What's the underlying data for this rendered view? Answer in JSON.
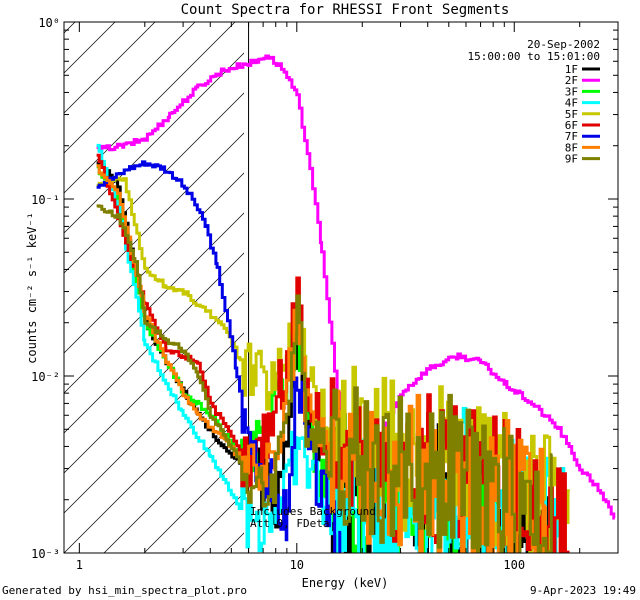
{
  "chart_data": {
    "type": "line",
    "title": "Count Spectra for RHESSI Front Segments",
    "xlabel": "Energy (keV)",
    "ylabel": "counts cm⁻² s⁻¹ keV⁻¹",
    "xscale": "log",
    "yscale": "log",
    "xlim": [
      0.85,
      300
    ],
    "ylim": [
      0.001,
      1.0
    ],
    "x_tick_labels": [
      "1",
      "10",
      "100"
    ],
    "y_tick_labels": [
      "10⁻³",
      "10⁻²",
      "10⁻¹",
      "10⁰"
    ],
    "date": "20-Sep-2002",
    "time_range": "15:00:00 to 15:01:00",
    "annotation_line1": "Includes Background",
    "annotation_line2": "Att 0, FDeta",
    "hatch_region_xmax": 6.0,
    "legend_position": "top-right",
    "series": [
      {
        "name": "1F",
        "color": "#000000",
        "points": [
          [
            1.2,
            0.165
          ],
          [
            1.5,
            0.12
          ],
          [
            2,
            0.02
          ],
          [
            2.5,
            0.012
          ],
          [
            3.5,
            0.006
          ],
          [
            4.5,
            0.004
          ],
          [
            6,
            0.003
          ],
          [
            8,
            0.002
          ],
          [
            10,
            0.015
          ],
          [
            12,
            0.003
          ],
          [
            20,
            0.002
          ],
          [
            40,
            0.002
          ],
          [
            80,
            0.0016
          ],
          [
            150,
            0.0012
          ]
        ]
      },
      {
        "name": "2F",
        "color": "#ff00ff",
        "points": [
          [
            1.2,
            0.19
          ],
          [
            1.6,
            0.2
          ],
          [
            2,
            0.22
          ],
          [
            2.6,
            0.3
          ],
          [
            3.5,
            0.43
          ],
          [
            4.5,
            0.53
          ],
          [
            5.5,
            0.57
          ],
          [
            6.5,
            0.6
          ],
          [
            7.2,
            0.65
          ],
          [
            8.5,
            0.55
          ],
          [
            10,
            0.38
          ],
          [
            11.5,
            0.15
          ],
          [
            13,
            0.05
          ],
          [
            14.5,
            0.015
          ],
          [
            16,
            0.005
          ],
          [
            18,
            0.003
          ],
          [
            20,
            0.0028
          ],
          [
            25,
            0.005
          ],
          [
            30,
            0.008
          ],
          [
            40,
            0.011
          ],
          [
            55,
            0.013
          ],
          [
            70,
            0.012
          ],
          [
            90,
            0.009
          ],
          [
            120,
            0.007
          ],
          [
            160,
            0.005
          ],
          [
            200,
            0.003
          ],
          [
            250,
            0.0022
          ],
          [
            290,
            0.0015
          ]
        ]
      },
      {
        "name": "3F",
        "color": "#00ff00",
        "points": [
          [
            1.2,
            0.15
          ],
          [
            1.5,
            0.1
          ],
          [
            2,
            0.02
          ],
          [
            3,
            0.008
          ],
          [
            4,
            0.006
          ],
          [
            6,
            0.003
          ],
          [
            9,
            0.01
          ],
          [
            10,
            0.02
          ],
          [
            12,
            0.003
          ],
          [
            20,
            0.002
          ],
          [
            50,
            0.0017
          ],
          [
            100,
            0.0014
          ]
        ]
      },
      {
        "name": "4F",
        "color": "#00ffff",
        "points": [
          [
            1.2,
            0.2
          ],
          [
            1.5,
            0.09
          ],
          [
            2,
            0.015
          ],
          [
            3,
            0.006
          ],
          [
            4,
            0.0035
          ],
          [
            5,
            0.0022
          ],
          [
            6,
            0.0014
          ],
          [
            8,
            0.0018
          ],
          [
            10,
            0.004
          ],
          [
            15,
            0.0015
          ],
          [
            30,
            0.0018
          ],
          [
            60,
            0.0025
          ],
          [
            100,
            0.0018
          ],
          [
            180,
            0.0012
          ]
        ]
      },
      {
        "name": "5F",
        "color": "#c8c800",
        "points": [
          [
            1.2,
            0.12
          ],
          [
            1.6,
            0.13
          ],
          [
            2,
            0.04
          ],
          [
            2.5,
            0.032
          ],
          [
            3,
            0.03
          ],
          [
            3.5,
            0.025
          ],
          [
            4.5,
            0.02
          ],
          [
            5.5,
            0.012
          ],
          [
            6.5,
            0.01
          ],
          [
            8,
            0.009
          ],
          [
            10,
            0.03
          ],
          [
            11,
            0.01
          ],
          [
            13,
            0.006
          ],
          [
            20,
            0.004
          ],
          [
            30,
            0.0035
          ],
          [
            50,
            0.003
          ],
          [
            80,
            0.0025
          ],
          [
            120,
            0.002
          ],
          [
            180,
            0.0012
          ]
        ]
      },
      {
        "name": "6F",
        "color": "#e00000",
        "points": [
          [
            1.2,
            0.18
          ],
          [
            1.5,
            0.08
          ],
          [
            2,
            0.025
          ],
          [
            2.5,
            0.014
          ],
          [
            3,
            0.013
          ],
          [
            3.5,
            0.012
          ],
          [
            4,
            0.007
          ],
          [
            5,
            0.0045
          ],
          [
            6,
            0.003
          ],
          [
            7,
            0.0045
          ],
          [
            9,
            0.012
          ],
          [
            10,
            0.033
          ],
          [
            11,
            0.008
          ],
          [
            14,
            0.004
          ],
          [
            20,
            0.0035
          ],
          [
            40,
            0.003
          ],
          [
            70,
            0.0025
          ],
          [
            120,
            0.0018
          ],
          [
            180,
            0.0012
          ]
        ]
      },
      {
        "name": "7F",
        "color": "#0000e6",
        "points": [
          [
            1.2,
            0.12
          ],
          [
            1.4,
            0.13
          ],
          [
            1.7,
            0.15
          ],
          [
            2,
            0.16
          ],
          [
            2.4,
            0.15
          ],
          [
            2.8,
            0.13
          ],
          [
            3.3,
            0.1
          ],
          [
            3.8,
            0.07
          ],
          [
            4.3,
            0.04
          ],
          [
            4.8,
            0.02
          ],
          [
            5.3,
            0.01
          ],
          [
            5.8,
            0.005
          ],
          [
            7,
            0.003
          ],
          [
            8,
            0.002
          ],
          [
            9,
            0.0015
          ],
          [
            10,
            0.012
          ],
          [
            11,
            0.004
          ],
          [
            13,
            0.002
          ],
          [
            16,
            0.0015
          ]
        ]
      },
      {
        "name": "8F",
        "color": "#ff7f00",
        "points": [
          [
            1.2,
            0.15
          ],
          [
            1.5,
            0.11
          ],
          [
            2,
            0.022
          ],
          [
            2.5,
            0.012
          ],
          [
            3,
            0.008
          ],
          [
            3.5,
            0.006
          ],
          [
            4.5,
            0.0045
          ],
          [
            6,
            0.003
          ],
          [
            8,
            0.003
          ],
          [
            10,
            0.022
          ],
          [
            11,
            0.006
          ],
          [
            14,
            0.004
          ],
          [
            20,
            0.003
          ],
          [
            40,
            0.0028
          ],
          [
            80,
            0.0022
          ],
          [
            140,
            0.0015
          ]
        ]
      },
      {
        "name": "9F",
        "color": "#7f7f00",
        "points": [
          [
            1.2,
            0.09
          ],
          [
            1.5,
            0.08
          ],
          [
            1.8,
            0.045
          ],
          [
            2,
            0.02
          ],
          [
            2.5,
            0.016
          ],
          [
            3,
            0.014
          ],
          [
            3.5,
            0.01
          ],
          [
            4,
            0.006
          ],
          [
            5,
            0.004
          ],
          [
            6,
            0.0025
          ],
          [
            7,
            0.002
          ],
          [
            8,
            0.003
          ],
          [
            10,
            0.02
          ],
          [
            11,
            0.006
          ],
          [
            14,
            0.004
          ],
          [
            25,
            0.003
          ],
          [
            50,
            0.0028
          ],
          [
            90,
            0.002
          ],
          [
            150,
            0.0015
          ]
        ]
      }
    ]
  },
  "footer": {
    "generated_by": "Generated by hsi_min_spectra_plot.pro",
    "timestamp": "9-Apr-2023 19:49"
  }
}
